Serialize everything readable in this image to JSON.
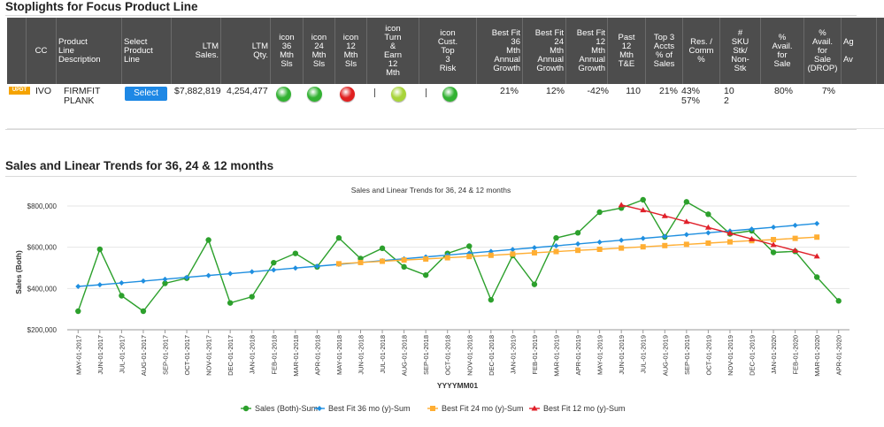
{
  "section1": {
    "title": "Stoplights for Focus Product Line"
  },
  "table": {
    "headers": [
      {
        "lines": [
          "CC"
        ]
      },
      {
        "lines": [
          "Product",
          "Line",
          "Description"
        ]
      },
      {
        "lines": [
          "Select",
          "Product",
          "Line"
        ]
      },
      {
        "lines": [
          "LTM",
          "Sales."
        ]
      },
      {
        "lines": [
          "LTM",
          "Qty."
        ]
      },
      {
        "lines": [
          "icon",
          "36",
          "Mth",
          "Sls"
        ]
      },
      {
        "lines": [
          "icon",
          "24",
          "Mth",
          "Sls"
        ]
      },
      {
        "lines": [
          "icon",
          "12",
          "Mth",
          "Sls"
        ]
      },
      {
        "lines": [
          "icon",
          "Turn",
          "&",
          "Earn",
          "12",
          "Mth"
        ]
      },
      {
        "lines": [
          "icon",
          "Cust.",
          "Top",
          "3",
          "Risk"
        ]
      },
      {
        "lines": [
          "Best Fit",
          "36",
          "Mth",
          "Annual",
          "Growth"
        ]
      },
      {
        "lines": [
          "Best Fit",
          "24",
          "Mth",
          "Annual",
          "Growth"
        ]
      },
      {
        "lines": [
          "Best Fit",
          "12",
          "Mth",
          "Annual",
          "Growth"
        ]
      },
      {
        "lines": [
          "Past",
          "12",
          "Mth",
          "T&E"
        ]
      },
      {
        "lines": [
          "Top 3",
          "Accts",
          "% of",
          "Sales"
        ]
      },
      {
        "lines": [
          "Res. /",
          "Comm",
          "%"
        ]
      },
      {
        "lines": [
          "#",
          "SKU",
          "Stk/",
          "Non-",
          "Stk"
        ]
      },
      {
        "lines": [
          "%",
          "Avail.",
          "for",
          "Sale"
        ]
      },
      {
        "lines": [
          "%",
          "Avail.",
          "for",
          "Sale",
          "(DROP)"
        ]
      },
      {
        "lines": [
          "Ag",
          "",
          "Av"
        ]
      }
    ],
    "row": {
      "badge": "UPDT",
      "cc": "IVO",
      "desc_line1": "FIRMFIT",
      "desc_line2": "PLANK",
      "select_label": "Select",
      "ltm_sales": "$7,882,819",
      "ltm_qty": "4,254,477",
      "icon36": "green",
      "icon24": "green",
      "icon12": "red",
      "turn_earn": "yellow-green",
      "cust_risk": "green",
      "bf36": "21%",
      "bf24": "12%",
      "bf12": "-42%",
      "te": "110",
      "top3": "21%",
      "res_comm_1": "43%",
      "res_comm_2": "57%",
      "sku_1": "10",
      "sku_2": "2",
      "avail": "80%",
      "avail_drop": "7%"
    }
  },
  "section2": {
    "title": "Sales and Linear Trends for 36, 24 & 12 months"
  },
  "colors": {
    "header_bg": "#4d4d4d",
    "green": "#33b233",
    "red": "#e02020",
    "yellow_green": "#a8d43a",
    "blue": "#1e88e5",
    "series_sales": "#2ca02c",
    "series_36": "#1f8fe0",
    "series_24": "#ffae33",
    "series_12": "#e0202a"
  },
  "chart_data": {
    "type": "line",
    "title": "Sales and Linear Trends for 36, 24 & 12 months",
    "xlabel": "YYYYMM01",
    "ylabel": "Sales (Both)",
    "ylim": [
      200000,
      800000
    ],
    "yticks": [
      "$200,000",
      "$400,000",
      "$600,000",
      "$800,000"
    ],
    "grid": true,
    "legend_position": "bottom",
    "categories": [
      "MAY-01-2017",
      "JUN-01-2017",
      "JUL-01-2017",
      "AUG-01-2017",
      "SEP-01-2017",
      "OCT-01-2017",
      "NOV-01-2017",
      "DEC-01-2017",
      "JAN-01-2018",
      "FEB-01-2018",
      "MAR-01-2018",
      "APR-01-2018",
      "MAY-01-2018",
      "JUN-01-2018",
      "JUL-01-2018",
      "AUG-01-2018",
      "SEP-01-2018",
      "OCT-01-2018",
      "NOV-01-2018",
      "DEC-01-2018",
      "JAN-01-2019",
      "FEB-01-2019",
      "MAR-01-2019",
      "APR-01-2019",
      "MAY-01-2019",
      "JUN-01-2019",
      "JUL-01-2019",
      "AUG-01-2019",
      "SEP-01-2019",
      "OCT-01-2019",
      "NOV-01-2019",
      "DEC-01-2019",
      "JAN-01-2020",
      "FEB-01-2020",
      "MAR-01-2020",
      "APR-01-2020"
    ],
    "series": [
      {
        "name": "Sales (Both)-Sum",
        "color": "#2ca02c",
        "marker": "circle",
        "values": [
          290000,
          590000,
          365000,
          290000,
          425000,
          450000,
          635000,
          330000,
          360000,
          525000,
          570000,
          505000,
          645000,
          545000,
          595000,
          505000,
          465000,
          570000,
          605000,
          345000,
          560000,
          420000,
          645000,
          670000,
          770000,
          790000,
          830000,
          650000,
          820000,
          760000,
          665000,
          680000,
          575000,
          580000,
          455000,
          340000
        ]
      },
      {
        "name": "Best Fit 36 mo (y)-Sum",
        "color": "#1f8fe0",
        "marker": "diamond",
        "values": [
          410000,
          418000,
          427000,
          436000,
          445000,
          454000,
          463000,
          472000,
          481000,
          490000,
          499000,
          508000,
          517000,
          526000,
          535000,
          544000,
          553000,
          562000,
          571000,
          580000,
          589000,
          598000,
          607000,
          616000,
          625000,
          634000,
          643000,
          652000,
          661000,
          670000,
          679000,
          688000,
          697000,
          706000,
          715000,
          null
        ]
      },
      {
        "name": "Best Fit 24 mo (y)-Sum",
        "color": "#ffae33",
        "marker": "square",
        "values": [
          null,
          null,
          null,
          null,
          null,
          null,
          null,
          null,
          null,
          null,
          null,
          null,
          520000,
          526000,
          532000,
          538000,
          543000,
          549000,
          555000,
          561000,
          567000,
          573000,
          579000,
          585000,
          590000,
          596000,
          602000,
          608000,
          614000,
          620000,
          626000,
          632000,
          637000,
          643000,
          649000,
          null
        ]
      },
      {
        "name": "Best Fit 12 mo (y)-Sum",
        "color": "#e0202a",
        "marker": "triangle",
        "values": [
          null,
          null,
          null,
          null,
          null,
          null,
          null,
          null,
          null,
          null,
          null,
          null,
          null,
          null,
          null,
          null,
          null,
          null,
          null,
          null,
          null,
          null,
          null,
          null,
          null,
          805000,
          780000,
          752000,
          724000,
          696000,
          668000,
          640000,
          612000,
          584000,
          556000,
          null
        ]
      }
    ]
  }
}
